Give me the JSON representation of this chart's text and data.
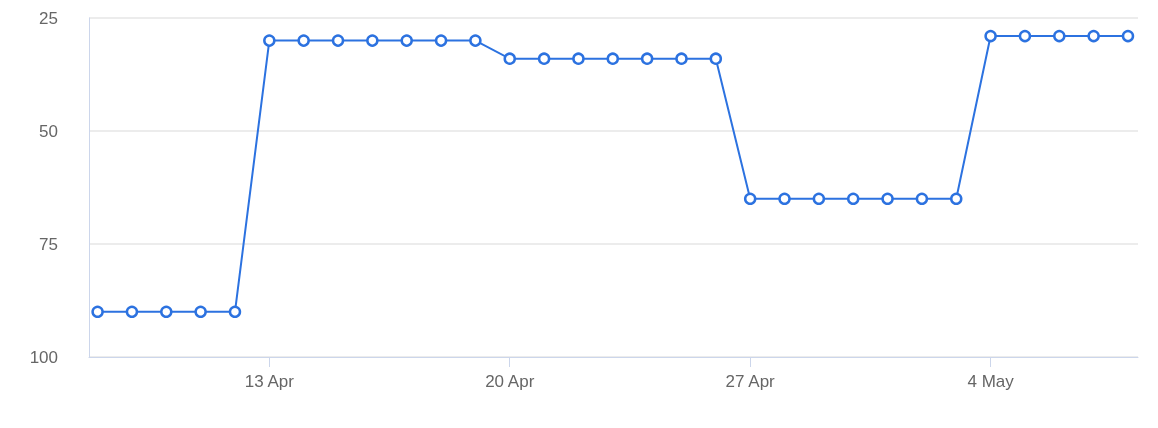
{
  "chart_data": {
    "type": "line",
    "x": [
      "--04-08",
      "--04-09",
      "--04-10",
      "--04-11",
      "--04-12",
      "--04-13",
      "--04-14",
      "--04-15",
      "--04-16",
      "--04-17",
      "--04-18",
      "--04-19",
      "--04-20",
      "--04-21",
      "--04-22",
      "--04-23",
      "--04-24",
      "--04-25",
      "--04-26",
      "--04-27",
      "--04-28",
      "--04-29",
      "--04-30",
      "--05-01",
      "--05-02",
      "--05-03",
      "--05-04",
      "--05-05",
      "--05-06",
      "--05-07",
      "--05-08"
    ],
    "series": [
      {
        "color": "#2c72e0",
        "values": [
          90,
          90,
          90,
          90,
          90,
          30,
          30,
          30,
          30,
          30,
          30,
          30,
          34,
          34,
          34,
          34,
          34,
          34,
          34,
          65,
          65,
          65,
          65,
          65,
          65,
          65,
          29,
          29,
          29,
          29,
          29
        ]
      }
    ],
    "xlim": [
      "--04-07T18:00",
      "--05-08T07:00"
    ],
    "xticks": [
      {
        "value": "--04-13",
        "label": "13 Apr"
      },
      {
        "value": "--04-20",
        "label": "20 Apr"
      },
      {
        "value": "--04-27",
        "label": "27 Apr"
      },
      {
        "value": "--05-04",
        "label": "4 May"
      }
    ],
    "ylim": [
      100,
      25
    ],
    "yticks": [
      25,
      50,
      75,
      100
    ],
    "grid": "y",
    "marker": "circle",
    "line_style": "solid"
  }
}
